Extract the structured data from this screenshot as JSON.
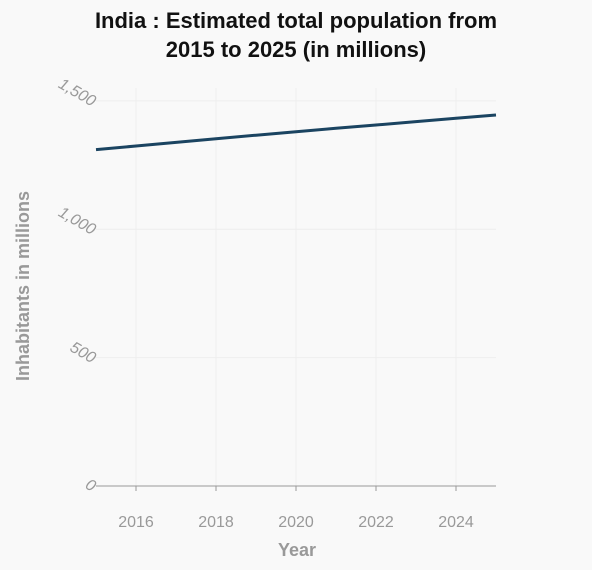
{
  "chart_data": {
    "type": "line",
    "title_line1": "India : Estimated total population from",
    "title_line2": "2015 to 2025 (in millions)",
    "xlabel": "Year",
    "ylabel": "Inhabitants in millions",
    "xlim": [
      2015,
      2025
    ],
    "ylim": [
      0,
      1550
    ],
    "x_ticks": [
      2016,
      2018,
      2020,
      2022,
      2024
    ],
    "x_tick_labels": [
      "2016",
      "2018",
      "2020",
      "2022",
      "2024"
    ],
    "y_ticks": [
      0,
      500,
      1000,
      1500
    ],
    "y_tick_labels": [
      "0",
      "500",
      "1,000",
      "1,500"
    ],
    "grid": true,
    "series": [
      {
        "color": "#1b4461",
        "x": [
          2015,
          2016,
          2017,
          2018,
          2019,
          2020,
          2021,
          2022,
          2023,
          2024,
          2025
        ],
        "y": [
          1310,
          1324,
          1338,
          1352,
          1366,
          1380,
          1393,
          1406,
          1419,
          1432,
          1445
        ]
      }
    ]
  }
}
